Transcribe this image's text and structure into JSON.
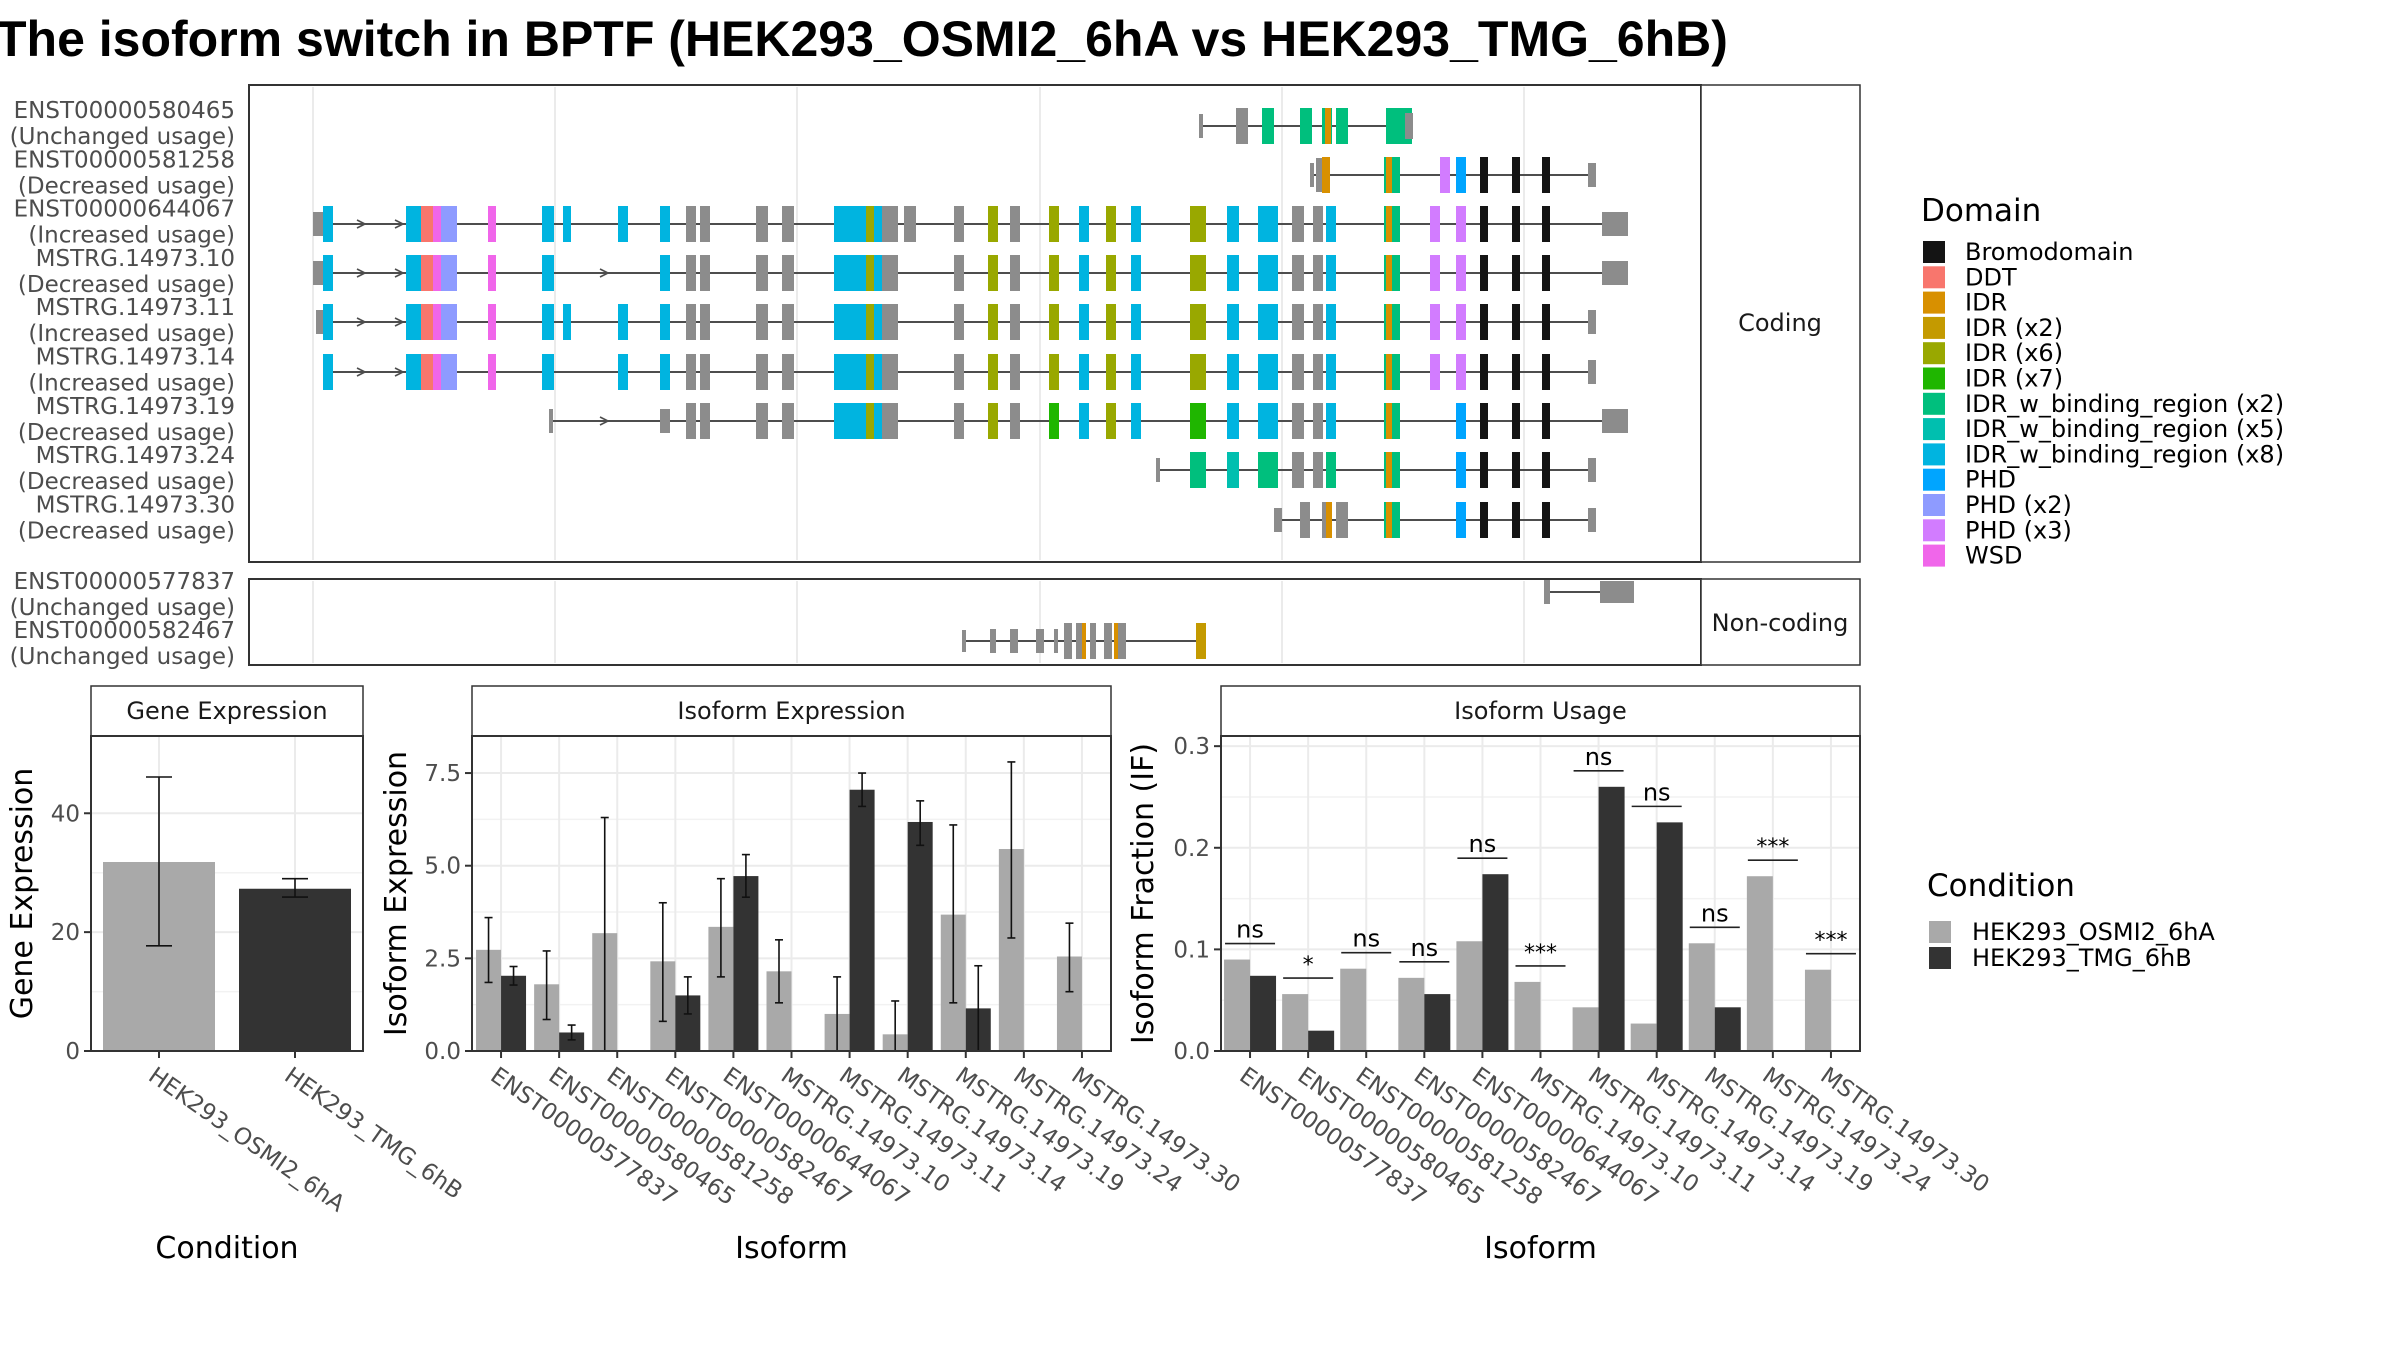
{
  "title": "The isoform switch in BPTF (HEK293_OSMI2_6hA vs HEK293_TMG_6hB)",
  "structure": {
    "coding_label": "Coding",
    "noncoding_label": "Non-coding",
    "coding": [
      {
        "id": "ENST00000580465",
        "usage": "(Unchanged usage)"
      },
      {
        "id": "ENST00000581258",
        "usage": "(Decreased usage)"
      },
      {
        "id": "ENST00000644067",
        "usage": "(Increased usage)"
      },
      {
        "id": "MSTRG.14973.10",
        "usage": "(Decreased usage)"
      },
      {
        "id": "MSTRG.14973.11",
        "usage": "(Increased usage)"
      },
      {
        "id": "MSTRG.14973.14",
        "usage": "(Increased usage)"
      },
      {
        "id": "MSTRG.14973.19",
        "usage": "(Decreased usage)"
      },
      {
        "id": "MSTRG.14973.24",
        "usage": "(Decreased usage)"
      },
      {
        "id": "MSTRG.14973.30",
        "usage": "(Decreased usage)"
      }
    ],
    "noncoding": [
      {
        "id": "ENST00000577837",
        "usage": "(Unchanged usage)"
      },
      {
        "id": "ENST00000582467",
        "usage": "(Unchanged usage)"
      }
    ]
  },
  "domain_legend": {
    "title": "Domain",
    "items": [
      {
        "name": "Bromodomain",
        "color": "#141414"
      },
      {
        "name": "DDT",
        "color": "#F8766D"
      },
      {
        "name": "IDR",
        "color": "#D89000"
      },
      {
        "name": "IDR (x2)",
        "color": "#C49A00"
      },
      {
        "name": "IDR (x6)",
        "color": "#99A800"
      },
      {
        "name": "IDR (x7)",
        "color": "#1FB600"
      },
      {
        "name": "IDR_w_binding_region (x2)",
        "color": "#00BF7D"
      },
      {
        "name": "IDR_w_binding_region (x5)",
        "color": "#00BFAF"
      },
      {
        "name": "IDR_w_binding_region (x8)",
        "color": "#00B4E0"
      },
      {
        "name": "PHD",
        "color": "#00A5FF"
      },
      {
        "name": "PHD (x2)",
        "color": "#8E9BFF"
      },
      {
        "name": "PHD (x3)",
        "color": "#D27CFF"
      },
      {
        "name": "WSD",
        "color": "#F066EA"
      }
    ]
  },
  "condition_legend": {
    "title": "Condition",
    "items": [
      {
        "name": "HEK293_OSMI2_6hA",
        "color": "#A9A9A9"
      },
      {
        "name": "HEK293_TMG_6hB",
        "color": "#333333"
      }
    ]
  },
  "chart_data": [
    {
      "type": "bar",
      "panel": "Gene Expression",
      "xlabel": "Condition",
      "ylabel": "Gene Expression",
      "ylim": [
        0,
        53
      ],
      "yticks": [
        0,
        20,
        40
      ],
      "categories": [
        "HEK293_OSMI2_6hA",
        "HEK293_TMG_6hB"
      ],
      "values": [
        31.8,
        27.3
      ],
      "error_low": [
        17.7,
        25.9
      ],
      "error_high": [
        46.1,
        29.0
      ]
    },
    {
      "type": "bar",
      "panel": "Isoform Expression",
      "xlabel": "Isoform",
      "ylabel": "Isoform Expression",
      "ylim": [
        0,
        8.5
      ],
      "yticks": [
        0.0,
        2.5,
        5.0,
        7.5
      ],
      "categories": [
        "ENST00000577837",
        "ENST00000580465",
        "ENST00000581258",
        "ENST00000582467",
        "ENST00000644067",
        "MSTRG.14973.10",
        "MSTRG.14973.11",
        "MSTRG.14973.14",
        "MSTRG.14973.19",
        "MSTRG.14973.24",
        "MSTRG.14973.30"
      ],
      "series": [
        {
          "name": "HEK293_OSMI2_6hA",
          "values": [
            2.73,
            1.8,
            3.18,
            2.42,
            3.35,
            2.15,
            1.0,
            0.45,
            3.68,
            5.45,
            2.55
          ],
          "error_low": [
            1.85,
            0.85,
            0.0,
            0.8,
            2.0,
            1.3,
            0.0,
            0.0,
            1.3,
            3.05,
            1.6
          ],
          "error_high": [
            3.6,
            2.7,
            6.3,
            4.0,
            4.65,
            3.0,
            2.0,
            1.35,
            6.1,
            7.8,
            3.45
          ]
        },
        {
          "name": "HEK293_TMG_6hB",
          "values": [
            2.03,
            0.5,
            0.0,
            1.5,
            4.72,
            0.0,
            7.05,
            6.18,
            1.15,
            0.0,
            0.0
          ],
          "error_low": [
            1.78,
            0.3,
            0.0,
            1.0,
            4.15,
            0.0,
            6.6,
            5.55,
            0.0,
            0.0,
            0.0
          ],
          "error_high": [
            2.28,
            0.7,
            0.0,
            2.0,
            5.3,
            0.0,
            7.5,
            6.75,
            2.3,
            0.0,
            0.0
          ]
        }
      ]
    },
    {
      "type": "bar",
      "panel": "Isoform Usage",
      "xlabel": "Isoform",
      "ylabel": "Isoform Fraction (IF)",
      "ylim": [
        0,
        0.31
      ],
      "yticks": [
        0.0,
        0.1,
        0.2,
        0.3
      ],
      "categories": [
        "ENST00000577837",
        "ENST00000580465",
        "ENST00000581258",
        "ENST00000582467",
        "ENST00000644067",
        "MSTRG.14973.10",
        "MSTRG.14973.11",
        "MSTRG.14973.14",
        "MSTRG.14973.19",
        "MSTRG.14973.24",
        "MSTRG.14973.30"
      ],
      "series": [
        {
          "name": "HEK293_OSMI2_6hA",
          "values": [
            0.09,
            0.056,
            0.081,
            0.072,
            0.108,
            0.068,
            0.043,
            0.027,
            0.106,
            0.172,
            0.08
          ]
        },
        {
          "name": "HEK293_TMG_6hB",
          "values": [
            0.074,
            0.02,
            0.0,
            0.056,
            0.174,
            0.0,
            0.26,
            0.225,
            0.043,
            0.0,
            0.0
          ]
        }
      ],
      "significance": [
        "ns",
        "*",
        "ns",
        "ns",
        "ns",
        "***",
        "ns",
        "ns",
        "ns",
        "***",
        "***"
      ]
    }
  ]
}
